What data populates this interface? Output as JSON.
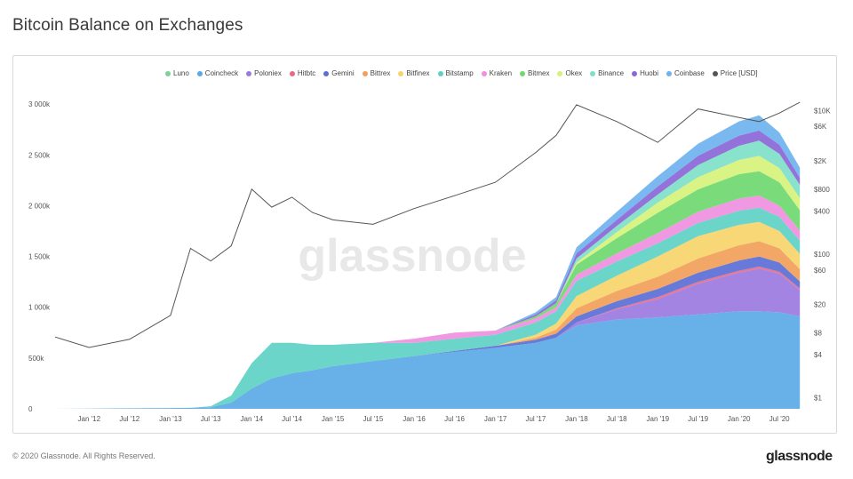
{
  "title": "Bitcoin Balance on Exchanges",
  "footer": "© 2020 Glassnode. All Rights Reserved.",
  "brand": "glassnode",
  "watermark": "glassnode",
  "chart_data": {
    "type": "area",
    "stacked": true,
    "title": "Bitcoin Balance on Exchanges",
    "xlabel": "",
    "ylabel": "",
    "y_left_ticks": [
      0,
      500000,
      1000000,
      1500000,
      2000000,
      2500000,
      3000000
    ],
    "y_left_tick_labels": [
      "0",
      "500k",
      "1 000k",
      "1 500k",
      "2 000k",
      "2 500k",
      "3 000k"
    ],
    "ylim_left": [
      0,
      3150000
    ],
    "y_right_scale": "log",
    "y_right_ticks": [
      1,
      4,
      8,
      20,
      60,
      100,
      400,
      800,
      2000,
      6000,
      10000
    ],
    "y_right_tick_labels": [
      "$1",
      "$4",
      "$8",
      "$20",
      "$60",
      "$100",
      "$400",
      "$800",
      "$2K",
      "$6K",
      "$10K"
    ],
    "x_tick_labels": [
      "Jan '12",
      "Jul '12",
      "Jan '13",
      "Jul '13",
      "Jan '14",
      "Jul '14",
      "Jan '15",
      "Jul '15",
      "Jan '16",
      "Jul '16",
      "Jan '17",
      "Jul '17",
      "Jan '18",
      "Jul '18",
      "Jan '19",
      "Jul '19",
      "Jan '20",
      "Jul '20"
    ],
    "x": [
      "2011-08",
      "2012-01",
      "2012-07",
      "2013-01",
      "2013-04",
      "2013-07",
      "2013-10",
      "2014-01",
      "2014-04",
      "2014-07",
      "2014-10",
      "2015-01",
      "2015-07",
      "2016-01",
      "2016-07",
      "2017-01",
      "2017-07",
      "2017-10",
      "2018-01",
      "2018-07",
      "2019-01",
      "2019-07",
      "2020-01",
      "2020-04",
      "2020-07",
      "2020-10"
    ],
    "legend_position": "top",
    "grid": false,
    "series": [
      {
        "name": "Luno",
        "color": "#7fd19a",
        "axis": "left",
        "values": [
          0,
          0,
          0,
          0,
          0,
          0,
          0,
          0,
          0,
          0,
          0,
          0,
          0,
          0,
          0,
          0,
          0,
          0,
          0,
          0,
          0,
          0,
          0,
          0,
          0,
          0
        ]
      },
      {
        "name": "Coincheck",
        "color": "#5aa9e6",
        "axis": "left",
        "values": [
          0,
          3000,
          5000,
          8000,
          10000,
          15000,
          60000,
          200000,
          300000,
          350000,
          380000,
          420000,
          470000,
          520000,
          560000,
          600000,
          650000,
          700000,
          820000,
          880000,
          900000,
          930000,
          960000,
          960000,
          950000,
          910000
        ]
      },
      {
        "name": "Poloniex",
        "color": "#9b7ae0",
        "axis": "left",
        "values": [
          0,
          0,
          0,
          0,
          0,
          0,
          0,
          0,
          0,
          0,
          0,
          0,
          0,
          0,
          0,
          0,
          0,
          0,
          30000,
          100000,
          180000,
          300000,
          380000,
          420000,
          380000,
          260000
        ]
      },
      {
        "name": "Hitbtc",
        "color": "#e86a8a",
        "axis": "left",
        "values": [
          0,
          0,
          0,
          0,
          0,
          0,
          0,
          0,
          0,
          0,
          0,
          0,
          0,
          0,
          0,
          0,
          0,
          0,
          0,
          10000,
          20000,
          20000,
          20000,
          20000,
          20000,
          15000
        ]
      },
      {
        "name": "Gemini",
        "color": "#5b6fd6",
        "axis": "left",
        "values": [
          0,
          0,
          0,
          0,
          0,
          0,
          0,
          0,
          0,
          0,
          0,
          0,
          0,
          0,
          10000,
          20000,
          30000,
          40000,
          60000,
          70000,
          80000,
          90000,
          100000,
          100000,
          90000,
          70000
        ]
      },
      {
        "name": "Bittrex",
        "color": "#f2a05a",
        "axis": "left",
        "values": [
          0,
          0,
          0,
          0,
          0,
          0,
          0,
          0,
          0,
          0,
          0,
          0,
          0,
          0,
          0,
          0,
          20000,
          40000,
          80000,
          100000,
          120000,
          140000,
          150000,
          150000,
          140000,
          120000
        ]
      },
      {
        "name": "Bitfinex",
        "color": "#f7d46b",
        "axis": "left",
        "values": [
          0,
          0,
          0,
          0,
          0,
          0,
          0,
          0,
          0,
          0,
          0,
          0,
          0,
          0,
          0,
          0,
          30000,
          60000,
          120000,
          150000,
          200000,
          220000,
          200000,
          190000,
          170000,
          150000
        ]
      },
      {
        "name": "Bitstamp",
        "color": "#5fd1c4",
        "axis": "left",
        "values": [
          0,
          0,
          0,
          0,
          0,
          10000,
          70000,
          250000,
          350000,
          300000,
          250000,
          210000,
          180000,
          130000,
          120000,
          110000,
          120000,
          120000,
          150000,
          140000,
          130000,
          130000,
          140000,
          140000,
          140000,
          130000
        ]
      },
      {
        "name": "Kraken",
        "color": "#f08fe0",
        "axis": "left",
        "values": [
          0,
          0,
          0,
          0,
          0,
          0,
          0,
          0,
          0,
          0,
          0,
          0,
          0,
          40000,
          60000,
          40000,
          40000,
          40000,
          60000,
          80000,
          100000,
          110000,
          120000,
          120000,
          110000,
          100000
        ]
      },
      {
        "name": "Bitmex",
        "color": "#6fd86f",
        "axis": "left",
        "values": [
          0,
          0,
          0,
          0,
          0,
          0,
          0,
          0,
          0,
          0,
          0,
          0,
          0,
          0,
          0,
          0,
          20000,
          40000,
          100000,
          150000,
          200000,
          220000,
          240000,
          240000,
          230000,
          200000
        ]
      },
      {
        "name": "Okex",
        "color": "#d6f27a",
        "axis": "left",
        "values": [
          0,
          0,
          0,
          0,
          0,
          0,
          0,
          0,
          0,
          0,
          0,
          0,
          0,
          0,
          0,
          0,
          0,
          0,
          20000,
          60000,
          100000,
          120000,
          140000,
          150000,
          140000,
          120000
        ]
      },
      {
        "name": "Binance",
        "color": "#7fe0c8",
        "axis": "left",
        "values": [
          0,
          0,
          0,
          0,
          0,
          0,
          0,
          0,
          0,
          0,
          0,
          0,
          0,
          0,
          0,
          0,
          0,
          0,
          40000,
          60000,
          80000,
          120000,
          140000,
          150000,
          140000,
          130000
        ]
      },
      {
        "name": "Huobi",
        "color": "#8a66d6",
        "axis": "left",
        "values": [
          0,
          0,
          0,
          0,
          0,
          0,
          0,
          0,
          0,
          0,
          0,
          0,
          0,
          0,
          0,
          0,
          20000,
          30000,
          50000,
          60000,
          80000,
          90000,
          100000,
          100000,
          90000,
          70000
        ]
      },
      {
        "name": "Coinbase",
        "color": "#6fb3ee",
        "axis": "left",
        "values": [
          0,
          0,
          0,
          0,
          0,
          0,
          0,
          0,
          0,
          0,
          0,
          0,
          0,
          0,
          0,
          0,
          20000,
          30000,
          60000,
          80000,
          100000,
          120000,
          140000,
          150000,
          120000,
          100000
        ]
      },
      {
        "name": "Price [USD]",
        "color": "#555555",
        "axis": "right",
        "values": [
          7,
          5,
          6.5,
          14,
          120,
          80,
          130,
          800,
          450,
          620,
          380,
          300,
          260,
          430,
          650,
          1000,
          2600,
          4500,
          12000,
          7000,
          3600,
          10500,
          8000,
          7000,
          9200,
          13000
        ]
      }
    ]
  }
}
